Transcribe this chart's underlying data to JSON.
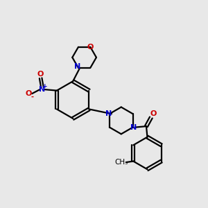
{
  "bg_color": "#e8e8e8",
  "bond_color": "#000000",
  "N_color": "#0000cc",
  "O_color": "#cc0000",
  "line_width": 1.6,
  "figsize": [
    3.0,
    3.0
  ],
  "dpi": 100,
  "xlim": [
    0,
    10
  ],
  "ylim": [
    0,
    10
  ]
}
